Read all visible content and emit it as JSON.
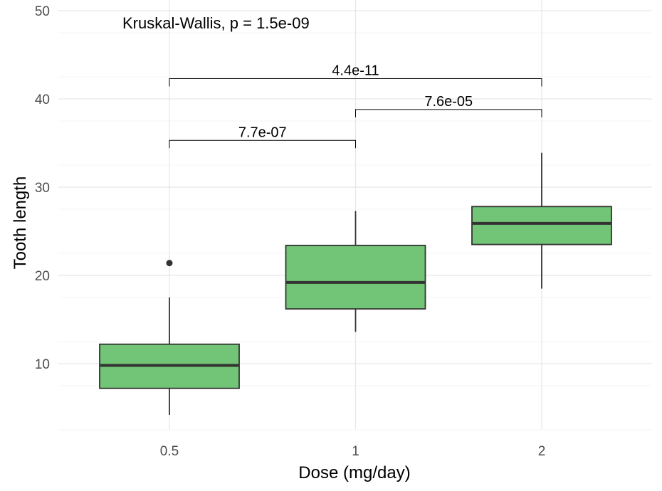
{
  "chart_data": {
    "type": "boxplot",
    "xlabel": "Dose (mg/day)",
    "ylabel": "Tooth length",
    "ylim": [
      2.5,
      50
    ],
    "yticks": [
      10,
      20,
      30,
      40,
      50
    ],
    "grid": true,
    "fill_color": "#72C476",
    "categories": [
      "0.5",
      "1",
      "2"
    ],
    "boxes": [
      {
        "category": "0.5",
        "lower_whisker": 4.2,
        "q1": 7.2,
        "median": 9.8,
        "q3": 12.2,
        "upper_whisker": 17.5,
        "outliers": [
          21.4
        ]
      },
      {
        "category": "1",
        "lower_whisker": 13.6,
        "q1": 16.2,
        "median": 19.2,
        "q3": 23.4,
        "upper_whisker": 27.3,
        "outliers": []
      },
      {
        "category": "2",
        "lower_whisker": 18.5,
        "q1": 23.5,
        "median": 25.9,
        "q3": 27.8,
        "upper_whisker": 33.9,
        "outliers": []
      }
    ],
    "annotation": "Kruskal-Wallis, p = 1.5e-09",
    "comparisons": [
      {
        "from": "0.5",
        "to": "1",
        "y": 35.3,
        "label": "7.7e-07"
      },
      {
        "from": "1",
        "to": "2",
        "y": 38.8,
        "label": "7.6e-05"
      },
      {
        "from": "0.5",
        "to": "2",
        "y": 42.3,
        "label": "4.4e-11"
      }
    ]
  }
}
